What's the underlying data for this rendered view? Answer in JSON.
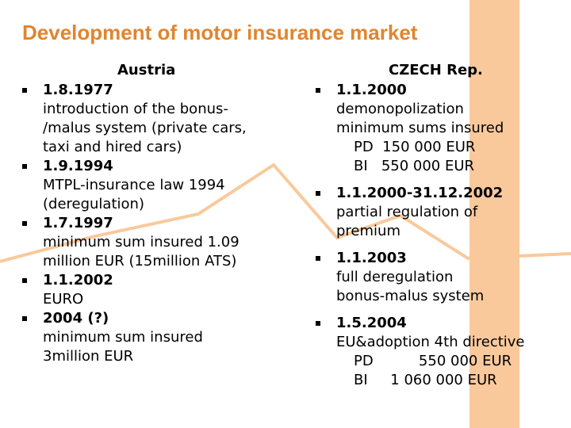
{
  "title": "Development of motor insurance market",
  "colors": {
    "title": "#e0852f",
    "band": "#f9c99c",
    "line": "#f9c99c"
  },
  "austria": {
    "heading": "Austria",
    "items": [
      {
        "date": "1.8.1977",
        "lines": [
          "introduction of the bonus-",
          "/malus system (private cars,",
          "taxi and hired cars)"
        ]
      },
      {
        "date": "1.9.1994",
        "lines": [
          "MTPL-insurance law 1994",
          "(deregulation)"
        ]
      },
      {
        "date": "1.7.1997",
        "lines": [
          "minimum sum insured 1.09",
          "million EUR (15million ATS)"
        ]
      },
      {
        "date": "1.1.2002",
        "lines": [
          "EURO"
        ]
      },
      {
        "date": "2004 (?)",
        "lines": [
          "minimum sum insured",
          "3million EUR"
        ]
      }
    ]
  },
  "czech": {
    "heading": "CZECH Rep.",
    "items": [
      {
        "date": "1.1.2000",
        "lines": [
          "demonopolization",
          "minimum sums insured",
          "PD  150 000 EUR",
          "BI   550 000 EUR"
        ]
      },
      {
        "date": "1.1.2000-31.12.2002",
        "lines": [
          "partial regulation of",
          "premium"
        ]
      },
      {
        "date": "1.1.2003",
        "lines": [
          "full deregulation",
          "bonus-malus system"
        ]
      },
      {
        "date": "1.5.2004",
        "lines": [
          "EU&adoption 4th directive",
          "PD          550 000 EUR",
          "BI     1 060 000 EUR"
        ]
      }
    ]
  }
}
